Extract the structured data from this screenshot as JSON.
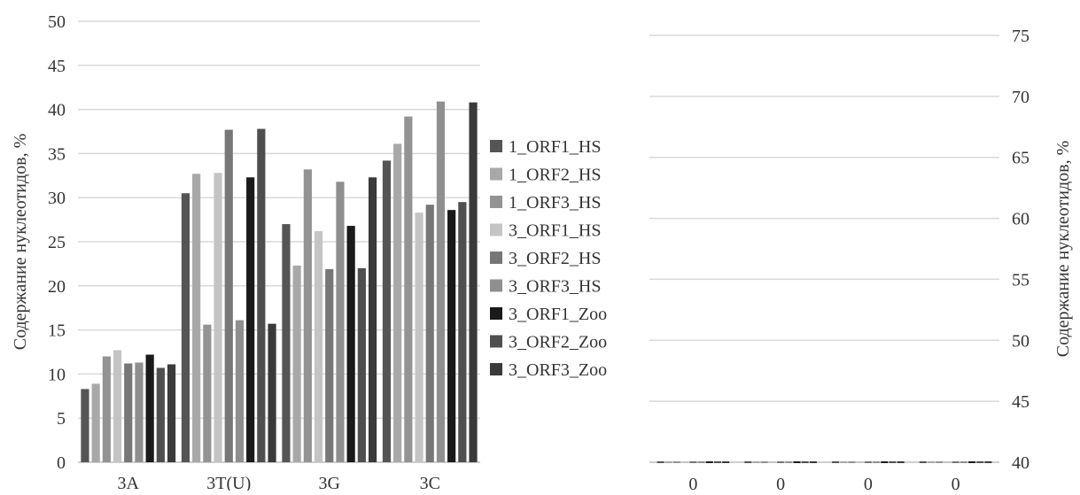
{
  "chart_data": [
    {
      "type": "bar",
      "ylabel": "Содержание нуклеотидов, %",
      "ylim": [
        0,
        50
      ],
      "ytick_step": 5,
      "grid": true,
      "legend_position": "right",
      "categories": [
        "3A",
        "3T(U)",
        "3G",
        "3C"
      ],
      "series": [
        {
          "name": "1_ORF1_HS",
          "color": "#555555",
          "values": [
            8.3,
            30.5,
            27.0,
            34.2
          ]
        },
        {
          "name": "1_ORF2_HS",
          "color": "#a8a8a8",
          "values": [
            8.9,
            32.7,
            22.3,
            36.1
          ]
        },
        {
          "name": "1_ORF3_HS",
          "color": "#939393",
          "values": [
            12.0,
            15.6,
            33.2,
            39.2
          ]
        },
        {
          "name": "3_ORF1_HS",
          "color": "#c4c4c4",
          "values": [
            12.7,
            32.8,
            26.2,
            28.3
          ]
        },
        {
          "name": "3_ORF2_HS",
          "color": "#777777",
          "values": [
            11.2,
            37.7,
            21.9,
            29.2
          ]
        },
        {
          "name": "3_ORF3_HS",
          "color": "#8f8f8f",
          "values": [
            11.3,
            16.1,
            31.8,
            40.9
          ]
        },
        {
          "name": "3_ORF1_Zoo",
          "color": "#1a1a1a",
          "values": [
            12.2,
            32.3,
            26.8,
            28.6
          ]
        },
        {
          "name": "3_ORF2_Zoo",
          "color": "#4f4f4f",
          "values": [
            10.7,
            37.8,
            22.0,
            29.5
          ]
        },
        {
          "name": "3_ORF3_Zoo",
          "color": "#3a3a3a",
          "values": [
            11.1,
            15.7,
            32.3,
            40.8
          ]
        }
      ]
    },
    {
      "type": "bar",
      "ylabel": "Содержание нуклеотидов, %",
      "ylim": [
        40,
        75
      ],
      "ytick_step": 5,
      "y_axis_side": "right",
      "grid": true,
      "categories": [
        "0",
        "0",
        "0",
        "0"
      ],
      "series_count": 9
    }
  ]
}
